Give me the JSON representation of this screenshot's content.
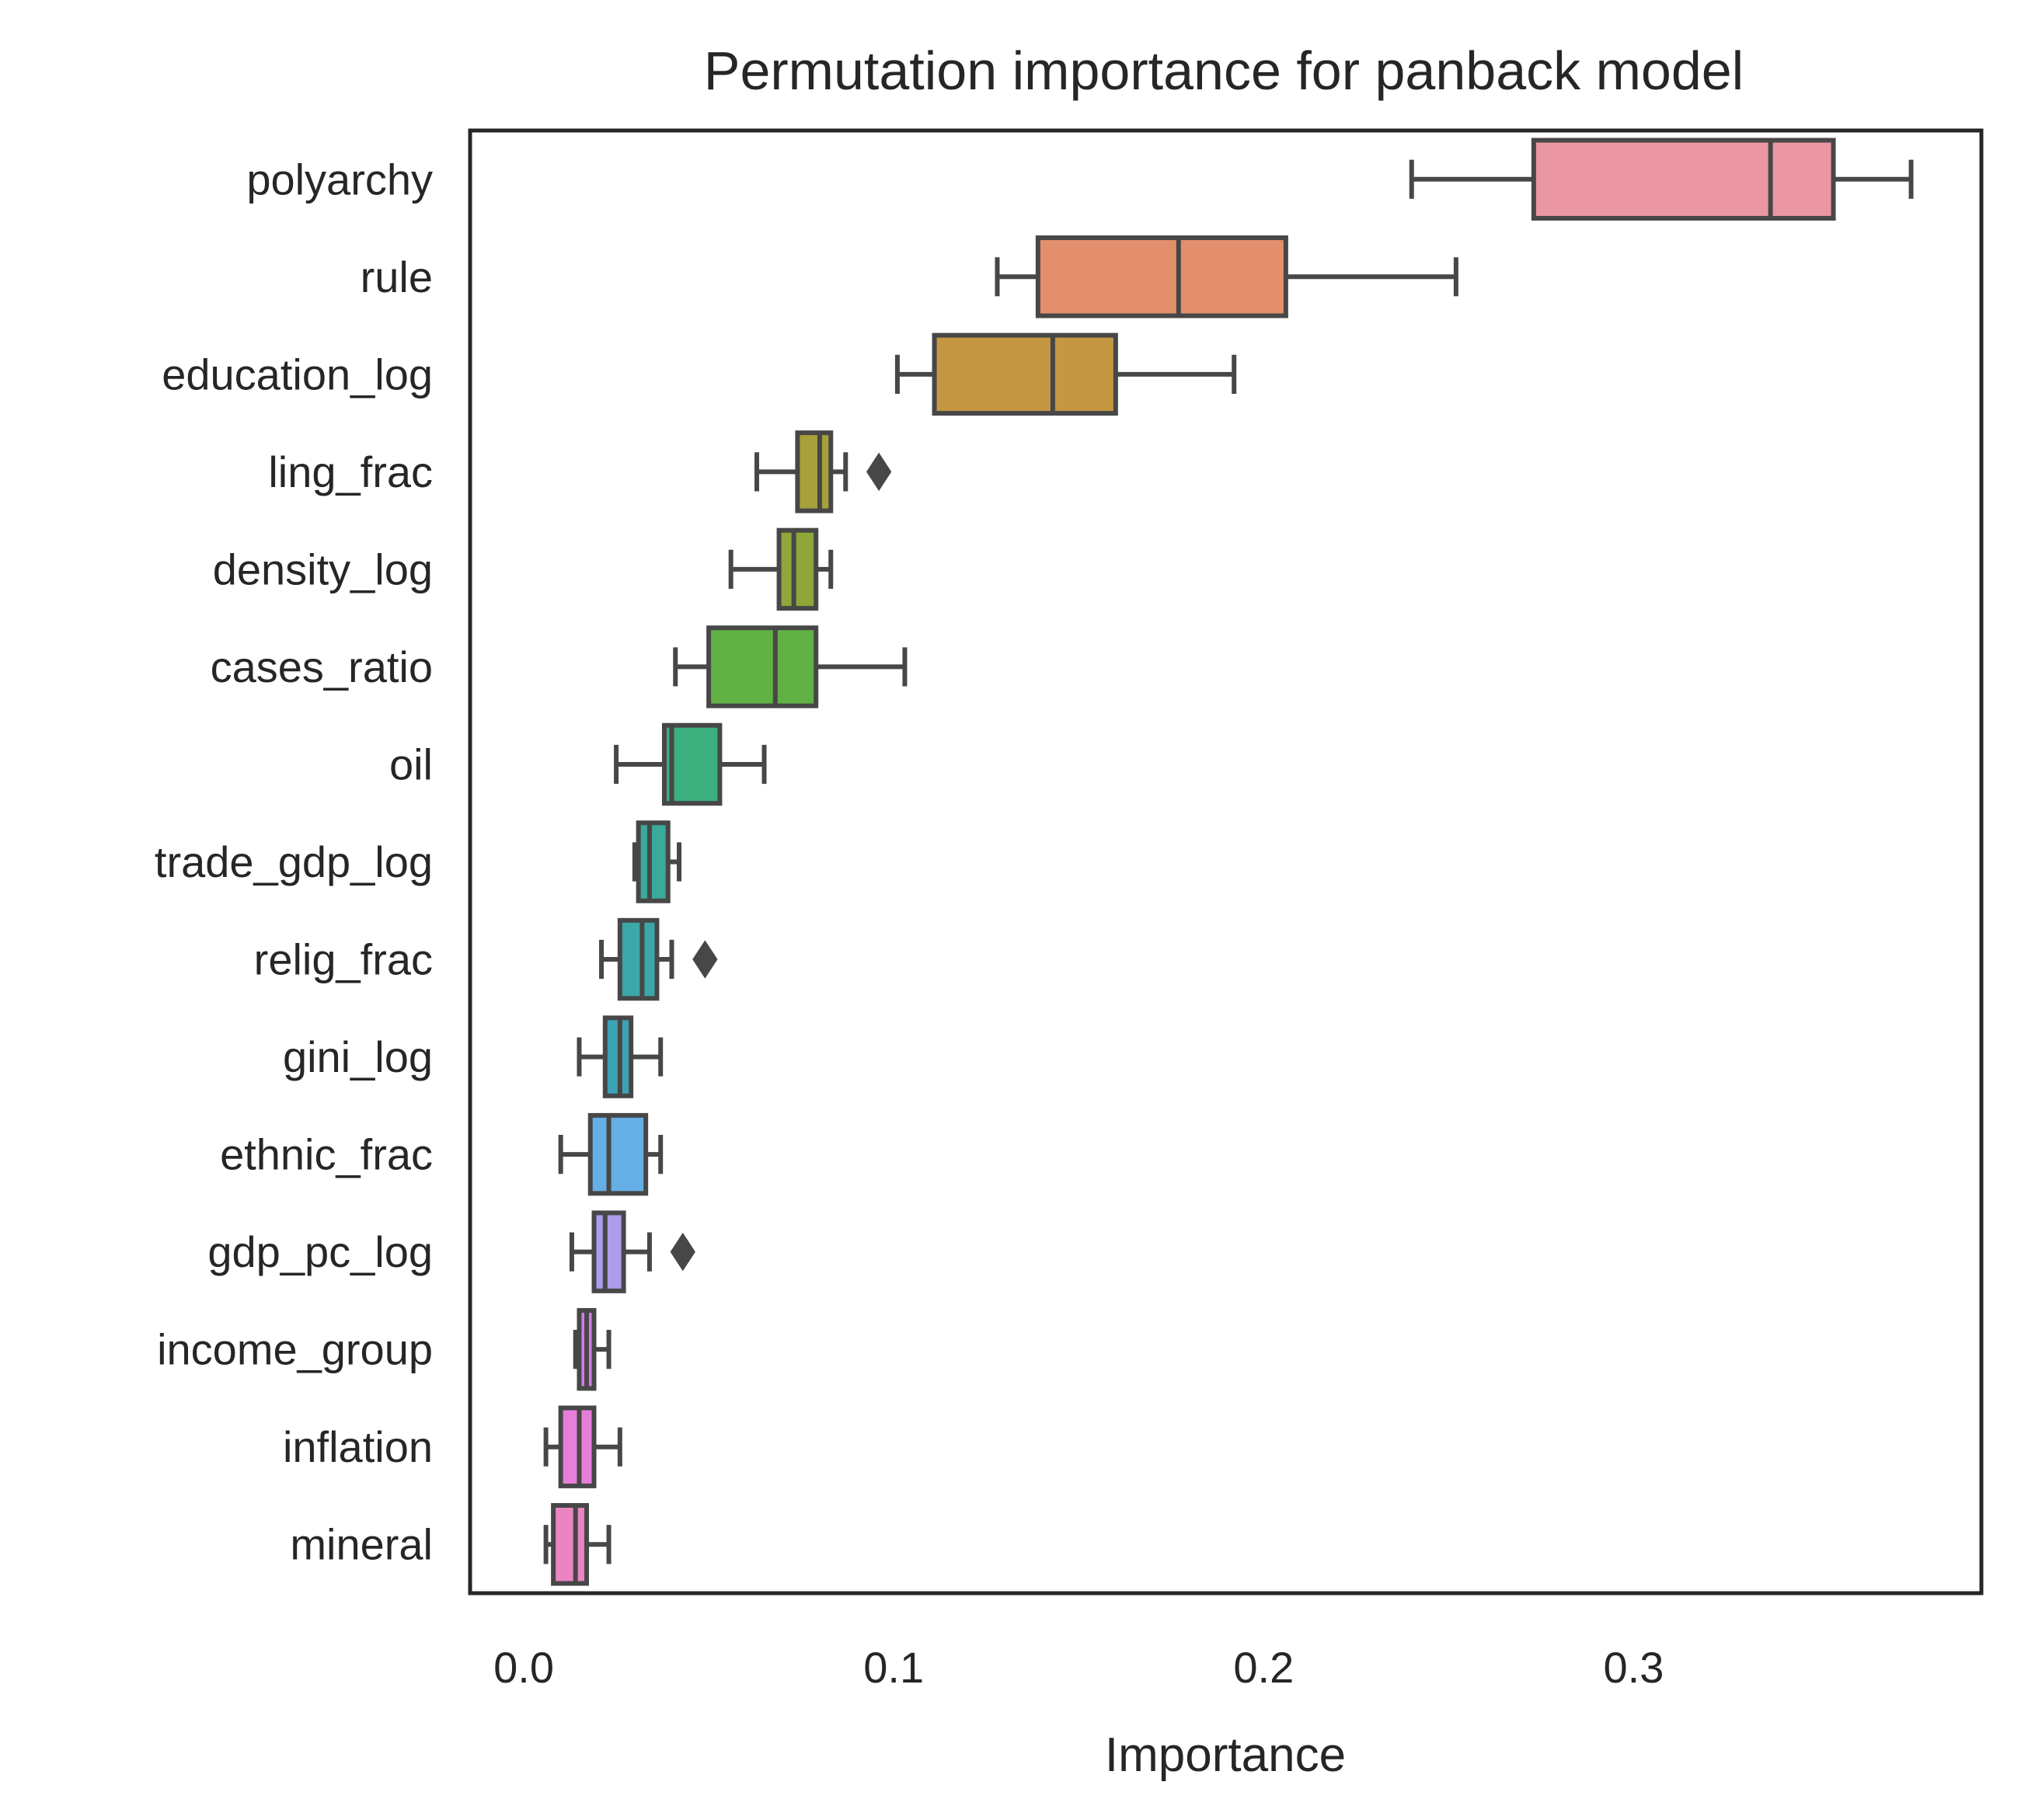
{
  "chart_data": {
    "type": "boxplot",
    "orientation": "horizontal",
    "title": "Permutation importance for panback model",
    "xlabel": "Importance",
    "ylabel": "",
    "xlim": [
      -0.0145,
      0.394
    ],
    "xticks": [
      0.0,
      0.1,
      0.2,
      0.3
    ],
    "xtick_labels": [
      "0.0",
      "0.1",
      "0.2",
      "0.3"
    ],
    "grid": false,
    "categories": [
      "polyarchy",
      "rule",
      "education_log",
      "ling_frac",
      "density_log",
      "cases_ratio",
      "oil",
      "trade_gdp_log",
      "relig_frac",
      "gini_log",
      "ethnic_frac",
      "gdp_pc_log",
      "income_group",
      "inflation",
      "mineral"
    ],
    "boxes": [
      {
        "label": "polyarchy",
        "whislo": 0.24,
        "q1": 0.273,
        "med": 0.337,
        "q3": 0.354,
        "whishi": 0.375,
        "fliers": [],
        "color": "#ea96a3"
      },
      {
        "label": "rule",
        "whislo": 0.128,
        "q1": 0.139,
        "med": 0.177,
        "q3": 0.206,
        "whishi": 0.252,
        "fliers": [],
        "color": "#e38f6d"
      },
      {
        "label": "education_log",
        "whislo": 0.101,
        "q1": 0.111,
        "med": 0.143,
        "q3": 0.16,
        "whishi": 0.192,
        "fliers": [],
        "color": "#c59743"
      },
      {
        "label": "ling_frac",
        "whislo": 0.063,
        "q1": 0.074,
        "med": 0.08,
        "q3": 0.083,
        "whishi": 0.087,
        "fliers": [
          0.096
        ],
        "color": "#a7a03b"
      },
      {
        "label": "density_log",
        "whislo": 0.056,
        "q1": 0.069,
        "med": 0.073,
        "q3": 0.079,
        "whishi": 0.083,
        "fliers": [],
        "color": "#8fa638"
      },
      {
        "label": "cases_ratio",
        "whislo": 0.041,
        "q1": 0.05,
        "med": 0.068,
        "q3": 0.079,
        "whishi": 0.103,
        "fliers": [],
        "color": "#61b145"
      },
      {
        "label": "oil",
        "whislo": 0.025,
        "q1": 0.038,
        "med": 0.04,
        "q3": 0.053,
        "whishi": 0.065,
        "fliers": [],
        "color": "#3baf7e"
      },
      {
        "label": "trade_gdp_log",
        "whislo": 0.03,
        "q1": 0.031,
        "med": 0.034,
        "q3": 0.039,
        "whishi": 0.042,
        "fliers": [],
        "color": "#3aaa9a"
      },
      {
        "label": "relig_frac",
        "whislo": 0.021,
        "q1": 0.026,
        "med": 0.032,
        "q3": 0.036,
        "whishi": 0.04,
        "fliers": [
          0.049
        ],
        "color": "#3ba7a8"
      },
      {
        "label": "gini_log",
        "whislo": 0.015,
        "q1": 0.022,
        "med": 0.026,
        "q3": 0.029,
        "whishi": 0.037,
        "fliers": [],
        "color": "#3ea2b5"
      },
      {
        "label": "ethnic_frac",
        "whislo": 0.01,
        "q1": 0.018,
        "med": 0.023,
        "q3": 0.033,
        "whishi": 0.037,
        "fliers": [],
        "color": "#66aee6"
      },
      {
        "label": "gdp_pc_log",
        "whislo": 0.013,
        "q1": 0.019,
        "med": 0.022,
        "q3": 0.027,
        "whishi": 0.034,
        "fliers": [
          0.043
        ],
        "color": "#ad9cec"
      },
      {
        "label": "income_group",
        "whislo": 0.014,
        "q1": 0.015,
        "med": 0.017,
        "q3": 0.019,
        "whishi": 0.023,
        "fliers": [],
        "color": "#d27ee8"
      },
      {
        "label": "inflation",
        "whislo": 0.006,
        "q1": 0.01,
        "med": 0.015,
        "q3": 0.019,
        "whishi": 0.026,
        "fliers": [],
        "color": "#e77ed9"
      },
      {
        "label": "mineral",
        "whislo": 0.006,
        "q1": 0.008,
        "med": 0.014,
        "q3": 0.017,
        "whishi": 0.023,
        "fliers": [],
        "color": "#ea85c2"
      }
    ],
    "colors": {
      "line": "#474747",
      "frame": "#262626",
      "text": "#262626"
    }
  }
}
